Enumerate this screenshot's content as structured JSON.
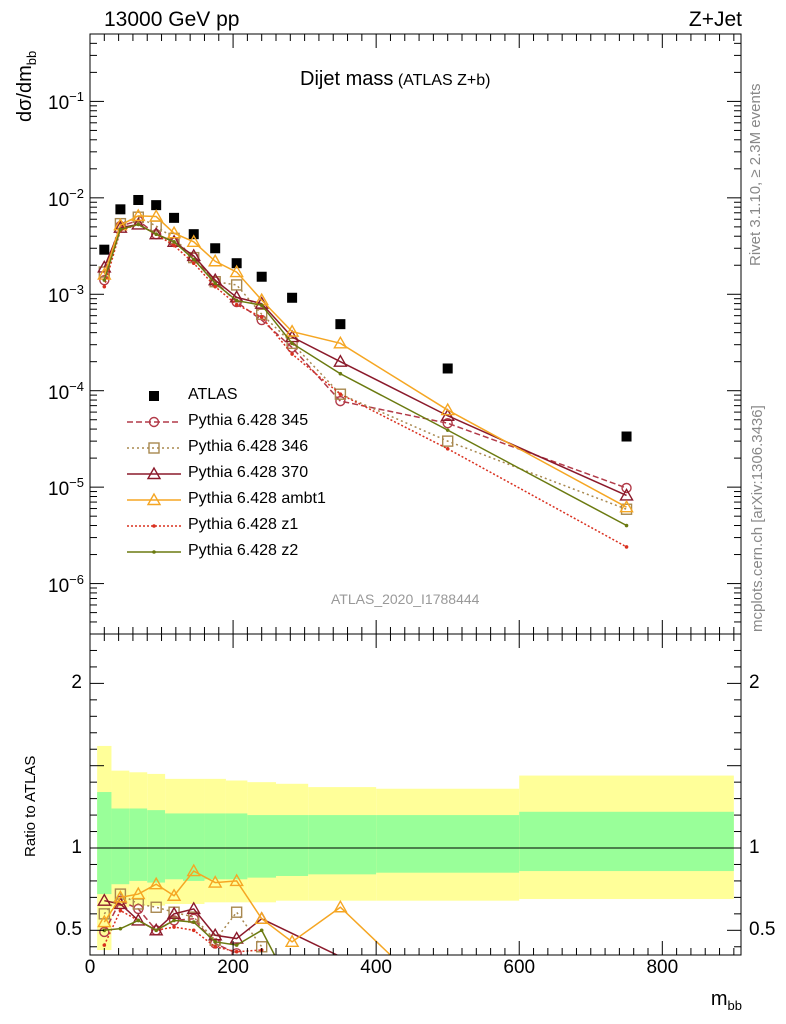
{
  "header": {
    "left": "13000 GeV pp",
    "right": "Z+Jet"
  },
  "side": {
    "rivet": "Rivet 3.1.10, ≥ 2.3M events",
    "mcplots": "mcplots.cern.ch [arXiv:1306.3436]"
  },
  "chart_data": [
    {
      "type": "line",
      "title": "Dijet mass",
      "title_note": "(ATLAS Z+b)",
      "ylabel_main": "dσ/dm",
      "ylabel_sub": "bb",
      "xlabel_main": "m",
      "xlabel_sub": "bb",
      "xlim": [
        0,
        910
      ],
      "ylim": [
        3e-07,
        0.5
      ],
      "log_y": true,
      "analysis_tag": "ATLAS_2020_I1788444",
      "y_tick_labels": [
        {
          "base": "10",
          "exp": "−1",
          "value": 0.1
        },
        {
          "base": "10",
          "exp": "−2",
          "value": 0.01
        },
        {
          "base": "10",
          "exp": "−3",
          "value": 0.001
        },
        {
          "base": "10",
          "exp": "−4",
          "value": 0.0001
        },
        {
          "base": "10",
          "exp": "−5",
          "value": 1e-05
        },
        {
          "base": "10",
          "exp": "−6",
          "value": 1e-06
        }
      ],
      "legend_position": "bottom-left",
      "series": [
        {
          "name": "ATLAS",
          "style": "data",
          "color": "#000000",
          "x": [
            20,
            42.5,
            67.5,
            92.5,
            117.5,
            145,
            175,
            205,
            240,
            282.5,
            350,
            500,
            750
          ],
          "y": [
            0.0029,
            0.0076,
            0.0095,
            0.0084,
            0.0062,
            0.0042,
            0.003,
            0.0021,
            0.00152,
            0.00092,
            0.00049,
            0.00017,
            3.35e-05
          ]
        },
        {
          "name": "Pythia 6.428 345",
          "style": "circle-dashed",
          "color": "#b23a48",
          "x": [
            20,
            42.5,
            67.5,
            92.5,
            117.5,
            145,
            175,
            205,
            240,
            282.5,
            350,
            500,
            750
          ],
          "y": [
            0.0014,
            0.0051,
            0.0058,
            0.0042,
            0.0035,
            0.0024,
            0.00135,
            0.00083,
            0.00054,
            0.00028,
            7.8e-05,
            4.6e-05,
            9.8e-06
          ]
        },
        {
          "name": "Pythia 6.428 346",
          "style": "square-dotted",
          "color": "#a8884f",
          "x": [
            20,
            42.5,
            67.5,
            92.5,
            117.5,
            145,
            175,
            205,
            240,
            282.5,
            350,
            500,
            750
          ],
          "y": [
            0.0017,
            0.0054,
            0.0063,
            0.0051,
            0.0038,
            0.0024,
            0.00135,
            0.00125,
            0.00062,
            0.00031,
            9.2e-05,
            3e-05,
            5.9e-06
          ]
        },
        {
          "name": "Pythia 6.428 370",
          "style": "triangle-solid",
          "color": "#8b1a2b",
          "x": [
            20,
            42.5,
            67.5,
            92.5,
            117.5,
            145,
            175,
            205,
            240,
            282.5,
            350,
            500,
            750
          ],
          "y": [
            0.0019,
            0.0049,
            0.0053,
            0.0042,
            0.0035,
            0.0025,
            0.0014,
            0.00093,
            0.0008,
            0.00036,
            0.0002,
            5.5e-05,
            8.2e-06
          ]
        },
        {
          "name": "Pythia 6.428 ambt1",
          "style": "triangle-solid",
          "color": "#f5a623",
          "x": [
            20,
            42.5,
            67.5,
            92.5,
            117.5,
            145,
            175,
            205,
            240,
            282.5,
            350,
            500,
            750
          ],
          "y": [
            0.0016,
            0.0052,
            0.0065,
            0.0064,
            0.0043,
            0.0035,
            0.0022,
            0.0017,
            0.00087,
            0.00041,
            0.00031,
            6.3e-05,
            6.2e-06
          ]
        },
        {
          "name": "Pythia 6.428 z1",
          "style": "dot-dotted",
          "color": "#d9301f",
          "x": [
            20,
            42.5,
            67.5,
            92.5,
            117.5,
            145,
            175,
            205,
            240,
            282.5,
            350,
            500,
            750
          ],
          "y": [
            0.0012,
            0.0046,
            0.0053,
            0.0042,
            0.0032,
            0.0021,
            0.0012,
            0.00078,
            0.00058,
            0.00024,
            9.2e-05,
            2.5e-05,
            2.4e-06
          ]
        },
        {
          "name": "Pythia 6.428 z2",
          "style": "dot-solid",
          "color": "#6b7a10",
          "x": [
            20,
            42.5,
            67.5,
            92.5,
            117.5,
            145,
            175,
            205,
            240,
            282.5,
            350,
            500,
            750
          ],
          "y": [
            0.0014,
            0.0047,
            0.0053,
            0.0042,
            0.0035,
            0.0023,
            0.0013,
            0.00086,
            0.00077,
            0.00031,
            0.00015,
            3.9e-05,
            4e-06
          ]
        }
      ]
    },
    {
      "type": "line",
      "title": "",
      "ylabel": "Ratio to ATLAS",
      "xlabel_main": "m",
      "xlabel_sub": "bb",
      "xlim": [
        0,
        910
      ],
      "ylim": [
        0.35,
        2.3
      ],
      "x_tick_labels": [
        "0",
        "200",
        "400",
        "600",
        "800"
      ],
      "y_tick_labels": [
        "0.5",
        "1",
        "2"
      ],
      "reference_line": 1,
      "bands": {
        "bins": [
          [
            10,
            30
          ],
          [
            30,
            55
          ],
          [
            55,
            80
          ],
          [
            80,
            105
          ],
          [
            105,
            130
          ],
          [
            130,
            160
          ],
          [
            160,
            190
          ],
          [
            190,
            220
          ],
          [
            220,
            260
          ],
          [
            260,
            305
          ],
          [
            305,
            400
          ],
          [
            400,
            600
          ],
          [
            600,
            900
          ]
        ],
        "stat_lo": [
          0.72,
          0.78,
          0.8,
          0.79,
          0.81,
          0.8,
          0.81,
          0.81,
          0.82,
          0.83,
          0.84,
          0.85,
          0.86
        ],
        "stat_hi": [
          1.34,
          1.24,
          1.24,
          1.23,
          1.21,
          1.21,
          1.21,
          1.21,
          1.2,
          1.2,
          1.2,
          1.2,
          1.22
        ],
        "tot_lo": [
          0.38,
          0.64,
          0.65,
          0.65,
          0.66,
          0.66,
          0.67,
          0.67,
          0.67,
          0.68,
          0.68,
          0.68,
          0.69
        ],
        "tot_hi": [
          1.62,
          1.47,
          1.46,
          1.45,
          1.42,
          1.42,
          1.42,
          1.41,
          1.4,
          1.39,
          1.37,
          1.36,
          1.44
        ]
      },
      "series": [
        {
          "name": "Pythia 6.428 345",
          "color": "#b23a48",
          "x": [
            20,
            42.5,
            67.5,
            92.5,
            117.5,
            145,
            175,
            205
          ],
          "y": [
            0.49,
            0.68,
            0.63,
            0.5,
            0.56,
            0.57,
            0.42,
            0.36
          ]
        },
        {
          "name": "Pythia 6.428 346",
          "color": "#a8884f",
          "x": [
            20,
            42.5,
            67.5,
            92.5,
            117.5,
            145,
            175,
            205,
            240
          ],
          "y": [
            0.6,
            0.72,
            0.66,
            0.64,
            0.61,
            0.58,
            0.44,
            0.61,
            0.4
          ]
        },
        {
          "name": "Pythia 6.428 370",
          "color": "#8b1a2b",
          "x": [
            20,
            42.5,
            67.5,
            92.5,
            117.5,
            145,
            175,
            205,
            240,
            350
          ],
          "y": [
            0.68,
            0.66,
            0.56,
            0.5,
            0.6,
            0.63,
            0.47,
            0.45,
            0.57,
            0.34
          ]
        },
        {
          "name": "Pythia 6.428 ambt1",
          "color": "#f5a623",
          "x": [
            20,
            42.5,
            67.5,
            92.5,
            117.5,
            145,
            175,
            205,
            240,
            282.5,
            350,
            420
          ],
          "y": [
            0.55,
            0.7,
            0.72,
            0.78,
            0.71,
            0.86,
            0.79,
            0.8,
            0.57,
            0.43,
            0.64,
            0.35
          ]
        },
        {
          "name": "Pythia 6.428 z1",
          "color": "#d9301f",
          "x": [
            20,
            42.5,
            67.5,
            92.5,
            117.5,
            145,
            175,
            205,
            240
          ],
          "y": [
            0.41,
            0.62,
            0.56,
            0.5,
            0.52,
            0.5,
            0.4,
            0.37,
            0.38
          ]
        },
        {
          "name": "Pythia 6.428 z2",
          "color": "#6b7a10",
          "x": [
            20,
            42.5,
            67.5,
            92.5,
            117.5,
            145,
            175,
            205,
            240,
            258
          ],
          "y": [
            0.5,
            0.51,
            0.56,
            0.5,
            0.56,
            0.55,
            0.43,
            0.41,
            0.5,
            0.35
          ]
        }
      ]
    }
  ]
}
